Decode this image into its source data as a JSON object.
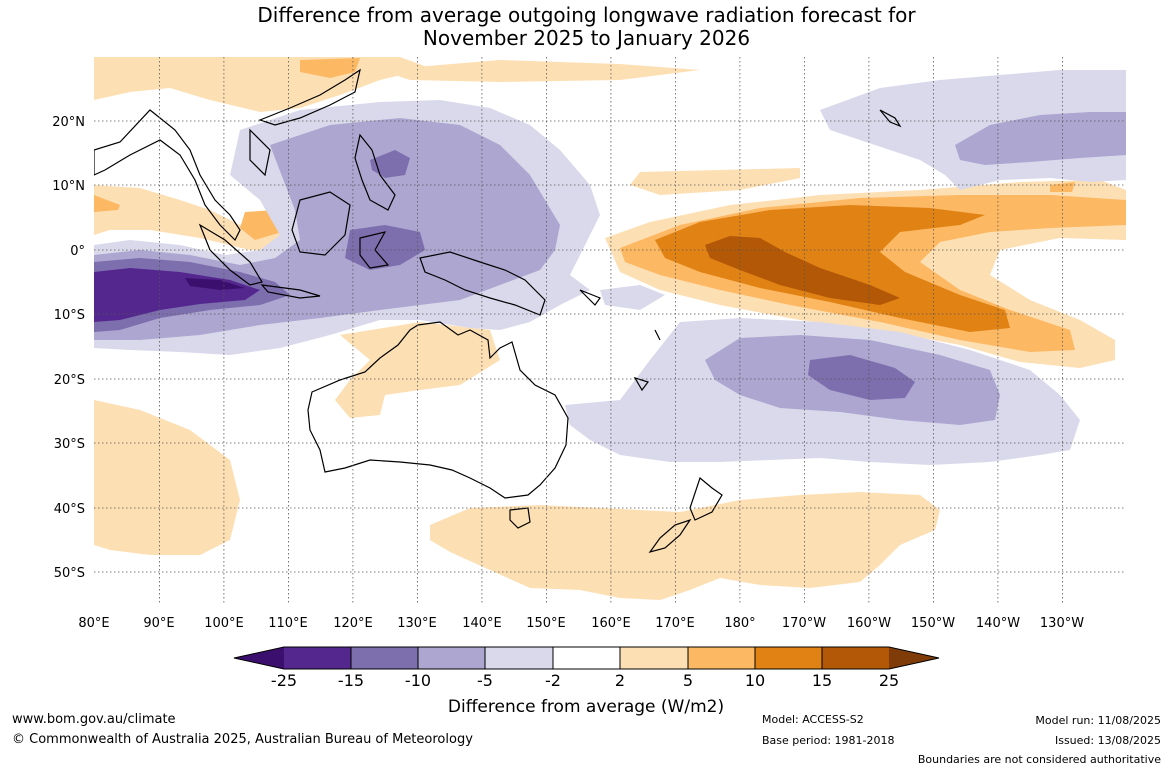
{
  "title": {
    "line1": "Difference from average outgoing longwave radiation forecast for",
    "line2": "November 2025 to January 2026"
  },
  "map": {
    "lon_labels": [
      "80°E",
      "90°E",
      "100°E",
      "110°E",
      "120°E",
      "130°E",
      "140°E",
      "150°E",
      "160°E",
      "170°E",
      "180°",
      "170°W",
      "160°W",
      "150°W",
      "140°W",
      "130°W"
    ],
    "lat_labels": [
      "20°N",
      "10°N",
      "0°",
      "10°S",
      "20°S",
      "30°S",
      "40°S",
      "50°S"
    ],
    "extent": {
      "lon": [
        80,
        240
      ],
      "lat": [
        -55,
        30
      ]
    },
    "land_outline_color": "#000000",
    "grid": "dotted"
  },
  "colorbar": {
    "labels": [
      "-25",
      "-15",
      "-10",
      "-5",
      "-2",
      "2",
      "5",
      "10",
      "15",
      "25"
    ],
    "colors": [
      "#3b0f6e",
      "#54278f",
      "#7d6fae",
      "#aca6d0",
      "#d9d9eb",
      "#ffffff",
      "#fddfb4",
      "#fdb863",
      "#e08214",
      "#b35806",
      "#7f3b08"
    ],
    "title": "Difference from average (W/m2)"
  },
  "footer": {
    "website": "www.bom.gov.au/climate",
    "copyright": "© Commonwealth of Australia 2025, Australian Bureau of Meteorology",
    "model": "Model: ACCESS-S2",
    "base_period": "Base period: 1981-2018",
    "model_run": "Model run: 11/08/2025",
    "issued": "Issued: 13/08/2025",
    "disclaimer": "Boundaries are not considered authoritative"
  }
}
